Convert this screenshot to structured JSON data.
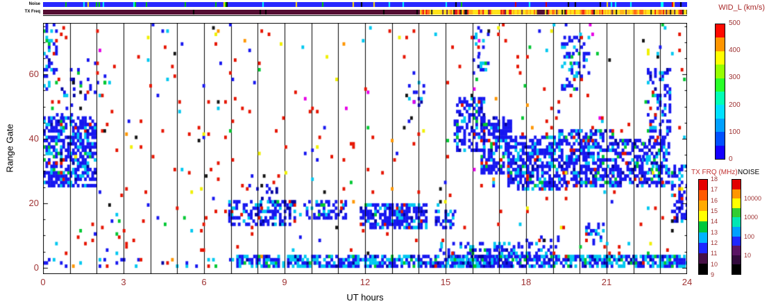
{
  "chart_data": {
    "type": "heatmap",
    "title": "",
    "xlabel": "UT hours",
    "ylabel": "Range Gate",
    "xlim": [
      0,
      24
    ],
    "ylim": [
      0,
      76
    ],
    "xticks": [
      0,
      3,
      6,
      9,
      12,
      15,
      18,
      21,
      24
    ],
    "yticks": [
      0,
      20,
      40,
      60
    ],
    "hour_gridlines": true,
    "seed": 20260214,
    "cell_dt": 0.09,
    "colors": {
      "blue": "#1616f0",
      "dkblue": "#0000a0",
      "cyan": "#00c8f0",
      "green": "#00c832",
      "yellow": "#f0f000",
      "orange": "#ff9600",
      "red": "#e61400",
      "black": "#141414",
      "magenta": "#e600e6"
    },
    "mixes": {
      "blueCyan": {
        "blue": 0.7,
        "cyan": 0.17,
        "dkblue": 0.06,
        "green": 0.04,
        "red": 0.03
      },
      "bandMix": {
        "blue": 0.48,
        "cyan": 0.38,
        "dkblue": 0.07,
        "green": 0.07
      }
    },
    "regions": [
      {
        "name": "topleft-corner-patch",
        "t": [
          0,
          0.45
        ],
        "g": [
          55,
          76
        ],
        "density": 0.3,
        "mix": "blueCyan"
      },
      {
        "name": "early-ut-main-blob",
        "t": [
          0,
          1.9
        ],
        "g": [
          25,
          47
        ],
        "density": 0.62,
        "mix": "blueCyan"
      },
      {
        "name": "early-ut-upper-fringe",
        "t": [
          0.3,
          1.2
        ],
        "g": [
          47,
          56
        ],
        "density": 0.2,
        "mix": "blueCyan"
      },
      {
        "name": "early-ut-high-sparse",
        "t": [
          1.0,
          2.3
        ],
        "g": [
          55,
          66
        ],
        "density": 0.12,
        "mix": "blueCyan"
      },
      {
        "name": "midmorning-blob-7to9",
        "t": [
          6.9,
          9.4
        ],
        "g": [
          13,
          21
        ],
        "density": 0.48,
        "mix": "blueCyan"
      },
      {
        "name": "midmorning-fringe",
        "t": [
          7.4,
          8.7
        ],
        "g": [
          21,
          26
        ],
        "density": 0.15,
        "mix": "blueCyan"
      },
      {
        "name": "blob-10to11",
        "t": [
          9.7,
          11.3
        ],
        "g": [
          15,
          21
        ],
        "density": 0.42,
        "mix": "blueCyan"
      },
      {
        "name": "noon-blob-12to14",
        "t": [
          11.8,
          14.3
        ],
        "g": [
          12,
          20
        ],
        "density": 0.68,
        "mix": "blueCyan"
      },
      {
        "name": "high-patch-near-14",
        "t": [
          13.6,
          14.2
        ],
        "g": [
          50,
          58
        ],
        "density": 0.25,
        "mix": "blueCyan"
      },
      {
        "name": "small-blob-15",
        "t": [
          14.6,
          15.3
        ],
        "g": [
          12,
          18
        ],
        "density": 0.3,
        "mix": "blueCyan"
      },
      {
        "name": "evening-band-descend-1",
        "t": [
          15.3,
          16.4
        ],
        "g": [
          36,
          53
        ],
        "density": 0.55,
        "mix": "blueCyan"
      },
      {
        "name": "evening-band-descend-2",
        "t": [
          16.3,
          17.4
        ],
        "g": [
          29,
          47
        ],
        "density": 0.58,
        "mix": "blueCyan"
      },
      {
        "name": "evening-band-main-1",
        "t": [
          17.3,
          19.2
        ],
        "g": [
          24,
          41
        ],
        "density": 0.62,
        "mix": "blueCyan"
      },
      {
        "name": "evening-band-main-2",
        "t": [
          19.2,
          21.2
        ],
        "g": [
          25,
          43
        ],
        "density": 0.58,
        "mix": "blueCyan"
      },
      {
        "name": "evening-band-main-3",
        "t": [
          21.2,
          23.3
        ],
        "g": [
          25,
          40
        ],
        "density": 0.58,
        "mix": "blueCyan"
      },
      {
        "name": "high-streak-19to20",
        "t": [
          19.3,
          20.3
        ],
        "g": [
          55,
          72
        ],
        "density": 0.28,
        "mix": "blueCyan"
      },
      {
        "name": "high-blob-22to23",
        "t": [
          22.5,
          23.4
        ],
        "g": [
          40,
          62
        ],
        "density": 0.35,
        "mix": "blueCyan"
      },
      {
        "name": "end-of-day-blob",
        "t": [
          23.4,
          24.0
        ],
        "g": [
          14,
          32
        ],
        "density": 0.45,
        "mix": "blueCyan"
      },
      {
        "name": "low-blob-20",
        "t": [
          20.2,
          20.9
        ],
        "g": [
          7,
          14
        ],
        "density": 0.35,
        "mix": "blueCyan"
      },
      {
        "name": "near-range-band",
        "t": [
          7.2,
          24.0
        ],
        "g": [
          0,
          4
        ],
        "density": 0.72,
        "mix": "bandMix"
      },
      {
        "name": "near-range-band-thick",
        "t": [
          14.8,
          17.7
        ],
        "g": [
          0,
          8
        ],
        "density": 0.45,
        "mix": "bandMix"
      },
      {
        "name": "near-range-band-sparse",
        "t": [
          0,
          7.2
        ],
        "g": [
          0,
          3
        ],
        "density": 0.12,
        "mix": "bandMix"
      },
      {
        "name": "low-sparse-18to19",
        "t": [
          17.8,
          19.3
        ],
        "g": [
          4,
          12
        ],
        "density": 0.15,
        "mix": "blueCyan"
      },
      {
        "name": "top-patch-16",
        "t": [
          16.0,
          16.6
        ],
        "g": [
          60,
          75
        ],
        "density": 0.2,
        "mix": "blueCyan"
      }
    ],
    "noise_scatter": {
      "prob": 0.02,
      "mix": {
        "red": 0.46,
        "cyan": 0.13,
        "blue": 0.13,
        "green": 0.08,
        "black": 0.07,
        "yellow": 0.05,
        "magenta": 0.04,
        "orange": 0.04
      }
    },
    "top_strips": {
      "noise": {
        "label": "Noise",
        "base": "#2828ff",
        "fleck_prob": 0.09,
        "flecks": [
          "#00c800",
          "#ffe000",
          "#00ffff",
          "#e60000",
          "#000000"
        ]
      },
      "txfreq": {
        "label": "TX Freq",
        "segments": [
          {
            "t": [
              0,
              14.05
            ],
            "mode": "solid",
            "color": "#540d33",
            "fleck_prob": 0.02,
            "flecks": [
              "#000000"
            ]
          },
          {
            "t": [
              14.05,
              24
            ],
            "mode": "mix",
            "mix": {
              "#ffe000": 0.45,
              "#ffaa00": 0.2,
              "#ff5a00": 0.12,
              "#e60000": 0.1,
              "#540d33": 0.07,
              "#000000": 0.06
            }
          },
          {
            "t": [
              18.4,
              18.7
            ],
            "mode": "solid",
            "color": "#540d33",
            "fleck_prob": 0.05,
            "flecks": [
              "#e60000"
            ]
          }
        ]
      }
    },
    "colorbars": {
      "wid": {
        "title": "WID_L (km/s)",
        "min": 0,
        "max": 500,
        "ticks": [
          500,
          400,
          300,
          200,
          100,
          0
        ],
        "colors_bottom_to_top": [
          "#1400ff",
          "#0050ff",
          "#00a0ff",
          "#00e0ff",
          "#00ffb4",
          "#28ff28",
          "#96ff00",
          "#ffff00",
          "#ff9600",
          "#ff0a00"
        ]
      },
      "txfrq": {
        "title": "TX FRQ (MHz)",
        "min": 9,
        "max": 18,
        "ticks": [
          18,
          17,
          16,
          15,
          14,
          13,
          12,
          11,
          10,
          9
        ],
        "colors_bottom_to_top": [
          "#000000",
          "#461046",
          "#1e28ff",
          "#00b4ff",
          "#00c83c",
          "#ffff00",
          "#ffaa00",
          "#ff5a00",
          "#e60000"
        ]
      },
      "noise": {
        "title": "NOISE",
        "scale": "log",
        "ticks": [
          10000,
          1000,
          100,
          10
        ],
        "decades": 5,
        "colors_bottom_to_top": [
          "#000000",
          "#320a3c",
          "#5a1464",
          "#1e28ff",
          "#00a0ff",
          "#00e6b4",
          "#32cd32",
          "#ffff00",
          "#ff9600",
          "#e10000"
        ]
      }
    }
  }
}
